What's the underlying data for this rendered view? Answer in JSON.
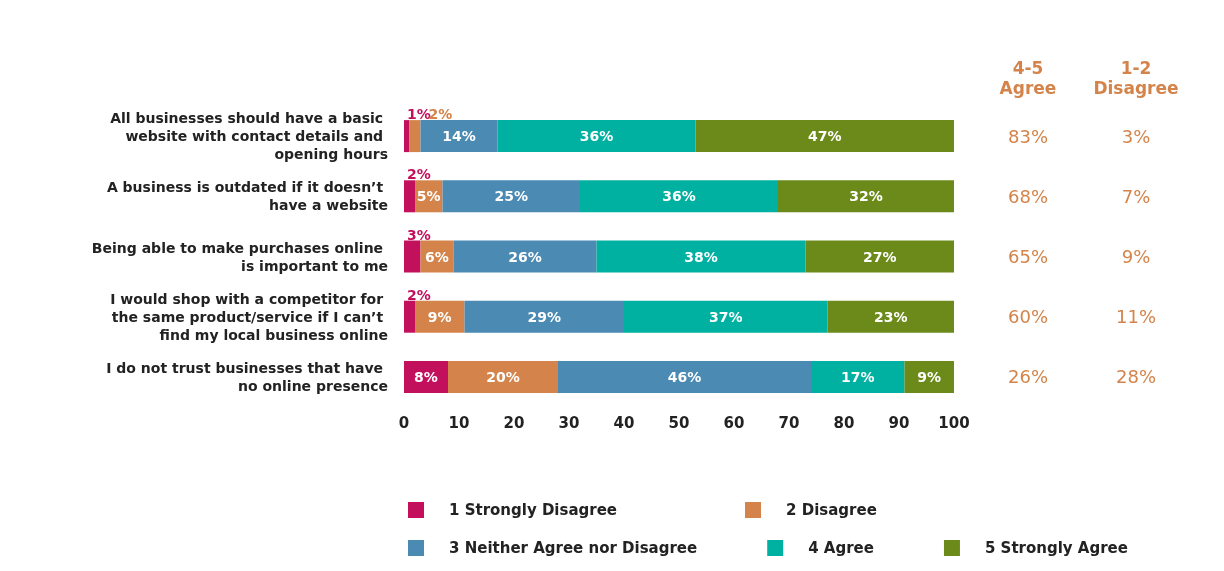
{
  "chart_data": {
    "type": "bar",
    "orientation": "horizontal",
    "stacked": true,
    "categories": [
      "All businesses should have a basic website with contact details and opening hours",
      "A business is outdated if it doesn’t have a website",
      "Being able to make purchases online is important to me",
      "I would shop with a competitor for the same product/service if I can’t find my local business online",
      "I do not trust businesses that have no online presence"
    ],
    "series": [
      {
        "name": "1 Strongly Disagree",
        "color": "#c2105c",
        "values": [
          1,
          2,
          3,
          2,
          8
        ],
        "value_labels": [
          "1%",
          "2%",
          "3%",
          "2%",
          "8%"
        ]
      },
      {
        "name": "2 Disagree",
        "color": "#d4844a",
        "values": [
          2,
          5,
          6,
          9,
          20
        ],
        "value_labels": [
          "2%",
          "5%",
          "6%",
          "9%",
          "20%"
        ]
      },
      {
        "name": "3 Neither Agree nor Disagree",
        "color": "#4a8ab3",
        "values": [
          14,
          25,
          26,
          29,
          46
        ],
        "value_labels": [
          "14%",
          "25%",
          "26%",
          "29%",
          "46%"
        ]
      },
      {
        "name": "4 Agree",
        "color": "#00b0a0",
        "values": [
          36,
          36,
          38,
          37,
          17
        ],
        "value_labels": [
          "36%",
          "36%",
          "38%",
          "37%",
          "17%"
        ]
      },
      {
        "name": "5 Strongly Agree",
        "color": "#6b8a1a",
        "values": [
          47,
          32,
          27,
          23,
          9
        ],
        "value_labels": [
          "47%",
          "32%",
          "27%",
          "23%",
          "9%"
        ]
      }
    ],
    "xlim": [
      0,
      100
    ],
    "xticks": [
      0,
      10,
      20,
      30,
      40,
      50,
      60,
      70,
      80,
      90,
      100
    ],
    "grid": false,
    "legend": "bottom",
    "annotations": [
      "4-5\nAgree",
      "1-2\nDisagree",
      "83%",
      "3%",
      "68%",
      "7%",
      "65%",
      "9%",
      "60%",
      "11%",
      "26%",
      "28%"
    ]
  }
}
